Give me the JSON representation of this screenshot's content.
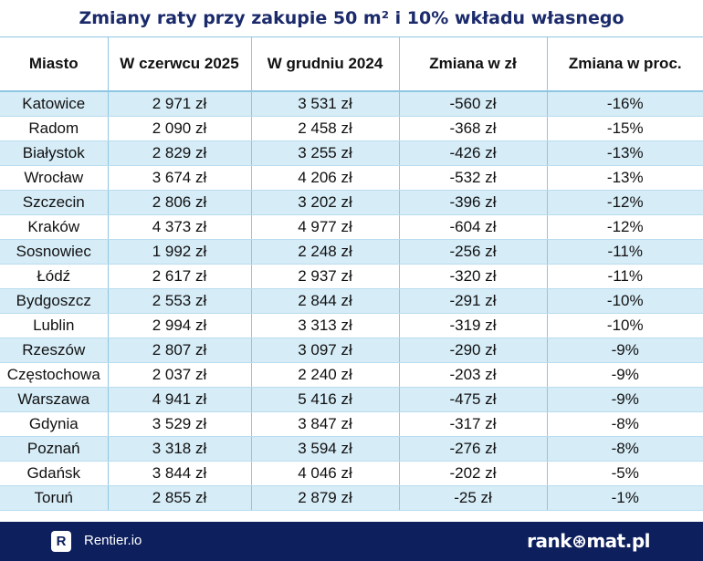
{
  "title": "Zmiany raty przy zakupie 50 m² i 10% wkładu własnego",
  "chart_data": {
    "type": "table",
    "columns": [
      "Miasto",
      "W czerwcu 2025",
      "W grudniu 2024",
      "Zmiana w zł",
      "Zmiana w proc."
    ],
    "rows": [
      [
        "Katowice",
        "2 971 zł",
        "3 531 zł",
        "-560 zł",
        "-16%"
      ],
      [
        "Radom",
        "2 090 zł",
        "2 458 zł",
        "-368 zł",
        "-15%"
      ],
      [
        "Białystok",
        "2 829 zł",
        "3 255 zł",
        "-426 zł",
        "-13%"
      ],
      [
        "Wrocław",
        "3 674 zł",
        "4 206 zł",
        "-532 zł",
        "-13%"
      ],
      [
        "Szczecin",
        "2 806 zł",
        "3 202 zł",
        "-396 zł",
        "-12%"
      ],
      [
        "Kraków",
        "4 373 zł",
        "4 977 zł",
        "-604 zł",
        "-12%"
      ],
      [
        "Sosnowiec",
        "1 992 zł",
        "2 248 zł",
        "-256 zł",
        "-11%"
      ],
      [
        "Łódź",
        "2 617 zł",
        "2 937 zł",
        "-320 zł",
        "-11%"
      ],
      [
        "Bydgoszcz",
        "2 553 zł",
        "2 844 zł",
        "-291 zł",
        "-10%"
      ],
      [
        "Lublin",
        "2 994 zł",
        "3 313 zł",
        "-319 zł",
        "-10%"
      ],
      [
        "Rzeszów",
        "2 807 zł",
        "3 097 zł",
        "-290 zł",
        "-9%"
      ],
      [
        "Częstochowa",
        "2 037 zł",
        "2 240 zł",
        "-203 zł",
        "-9%"
      ],
      [
        "Warszawa",
        "4 941 zł",
        "5 416 zł",
        "-475 zł",
        "-9%"
      ],
      [
        "Gdynia",
        "3 529 zł",
        "3 847 zł",
        "-317 zł",
        "-8%"
      ],
      [
        "Poznań",
        "3 318 zł",
        "3 594 zł",
        "-276 zł",
        "-8%"
      ],
      [
        "Gdańsk",
        "3 844 zł",
        "4 046 zł",
        "-202 zł",
        "-5%"
      ],
      [
        "Toruń",
        "2 855 zł",
        "2 879 zł",
        "-25 zł",
        "-1%"
      ]
    ]
  },
  "footer": {
    "left_logo_letter": "R",
    "left_brand": "Rentier.io",
    "right_brand": "rank⊛mat.pl"
  },
  "colors": {
    "title": "#1b2a6b",
    "row_highlight": "#d6ecf7",
    "footer_bg": "#0d1f5c",
    "grid": "#8fc6e2"
  }
}
